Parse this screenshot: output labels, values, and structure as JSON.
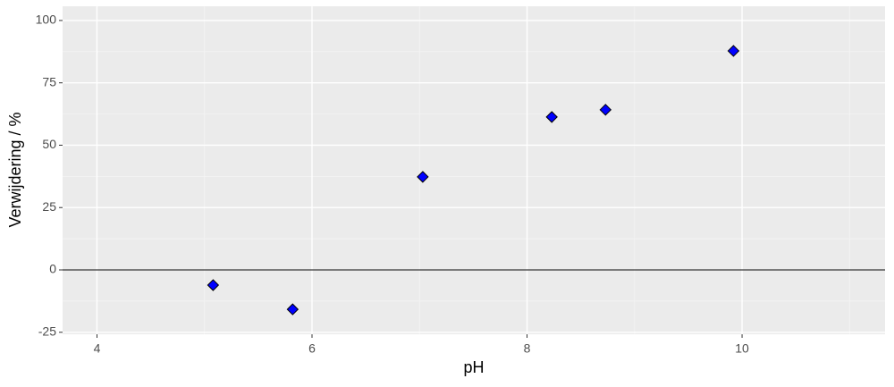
{
  "chart_data": {
    "type": "scatter",
    "x_label": "pH",
    "y_label": "Verwijdering / %",
    "series": [
      {
        "color": "#0000ff",
        "x": [
          5.08,
          5.82,
          7.03,
          8.23,
          8.73,
          9.92
        ],
        "values": [
          -6.1,
          -15.8,
          37.3,
          61.3,
          64.2,
          87.8
        ]
      }
    ],
    "xlim": [
      3.68,
      11.33
    ],
    "xticks": [
      4,
      6,
      8,
      10
    ],
    "ylim": [
      -25.8,
      105.7
    ],
    "yticks": [
      -25,
      0,
      25,
      50,
      75,
      100
    ],
    "hline": 0,
    "grid": true
  }
}
